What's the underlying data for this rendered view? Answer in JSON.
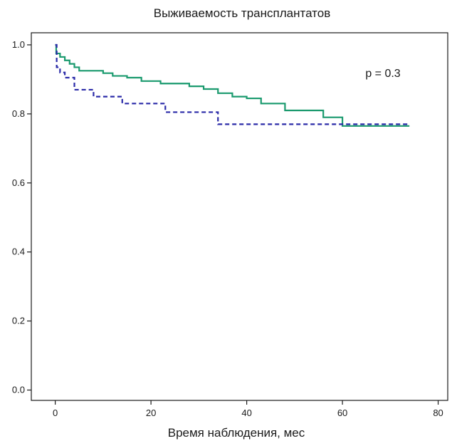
{
  "chart_data": {
    "type": "line",
    "title": "Выживаемость трансплантатов",
    "xlabel": "Время наблюдения, мес",
    "ylabel": "",
    "xlim": [
      -5,
      82
    ],
    "ylim": [
      -0.03,
      1.035
    ],
    "xticks": [
      0,
      20,
      40,
      60,
      80
    ],
    "yticks": [
      0.0,
      0.2,
      0.4,
      0.6,
      0.8,
      1.0
    ],
    "xtick_labels": [
      "0",
      "20",
      "40",
      "60",
      "80"
    ],
    "ytick_labels": [
      "0.0",
      "0.2",
      "0.4",
      "0.6",
      "0.8",
      "1.0"
    ],
    "grid": false,
    "step": true,
    "annotation": "p = 0.3",
    "series": [
      {
        "color": "#1a9a6e",
        "style": "solid",
        "points": [
          [
            0,
            1.0
          ],
          [
            0.2,
            0.975
          ],
          [
            1,
            0.965
          ],
          [
            2,
            0.955
          ],
          [
            3,
            0.945
          ],
          [
            4,
            0.935
          ],
          [
            5,
            0.925
          ],
          [
            10,
            0.918
          ],
          [
            12,
            0.91
          ],
          [
            15,
            0.905
          ],
          [
            18,
            0.895
          ],
          [
            22,
            0.888
          ],
          [
            28,
            0.88
          ],
          [
            31,
            0.872
          ],
          [
            34,
            0.86
          ],
          [
            37,
            0.85
          ],
          [
            40,
            0.845
          ],
          [
            43,
            0.83
          ],
          [
            48,
            0.81
          ],
          [
            56,
            0.79
          ],
          [
            60,
            0.765
          ],
          [
            74,
            0.765
          ]
        ]
      },
      {
        "color": "#2a2aa8",
        "style": "dashed",
        "points": [
          [
            0,
            1.0
          ],
          [
            0.3,
            0.935
          ],
          [
            1,
            0.92
          ],
          [
            2,
            0.905
          ],
          [
            4,
            0.87
          ],
          [
            8,
            0.85
          ],
          [
            14,
            0.83
          ],
          [
            23,
            0.805
          ],
          [
            34,
            0.77
          ],
          [
            74,
            0.77
          ]
        ]
      }
    ]
  }
}
